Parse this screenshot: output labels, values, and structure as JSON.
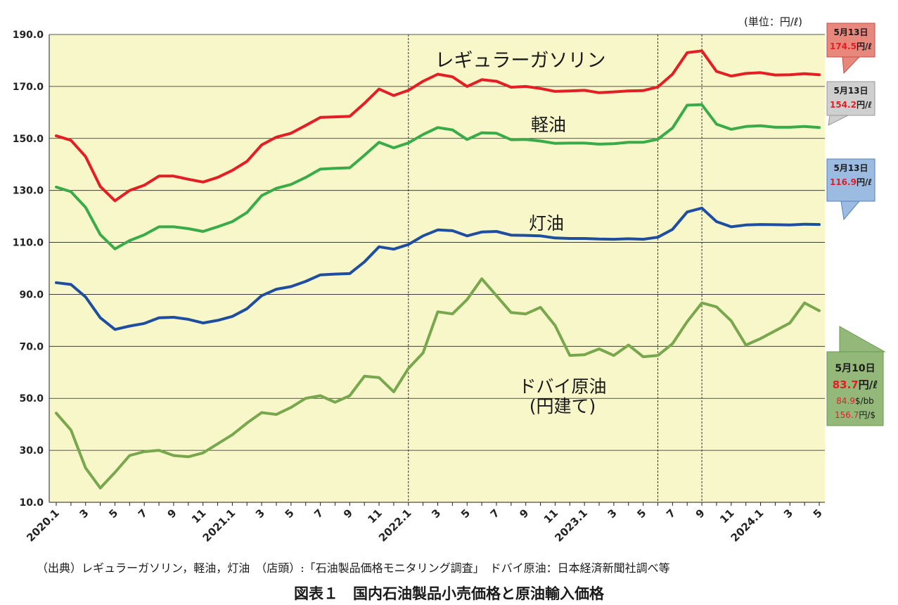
{
  "chart_data": {
    "type": "line",
    "unit_label": "(単位：円/ℓ)",
    "y_ticks": [
      "190.0",
      "170.0",
      "150.0",
      "130.0",
      "110.0",
      "90.0",
      "70.0",
      "50.0",
      "30.0",
      "10.0"
    ],
    "ylim": [
      10,
      190
    ],
    "x_tick_labels": [
      "2020.1",
      "3",
      "5",
      "7",
      "9",
      "11",
      "2021.1",
      "3",
      "5",
      "7",
      "9",
      "11",
      "2022.1",
      "3",
      "5",
      "7",
      "9",
      "11",
      "2023.1",
      "3",
      "5",
      "7",
      "9",
      "11",
      "2024.1",
      "3",
      "5"
    ],
    "x": [
      "2020.1",
      "2020.2",
      "2020.3",
      "2020.4",
      "2020.5",
      "2020.6",
      "2020.7",
      "2020.8",
      "2020.9",
      "2020.10",
      "2020.11",
      "2020.12",
      "2021.1",
      "2021.2",
      "2021.3",
      "2021.4",
      "2021.5",
      "2021.6",
      "2021.7",
      "2021.8",
      "2021.9",
      "2021.10",
      "2021.11",
      "2021.12",
      "2022.1",
      "2022.2",
      "2022.3",
      "2022.4",
      "2022.5",
      "2022.6",
      "2022.7",
      "2022.8",
      "2022.9",
      "2022.10",
      "2022.11",
      "2022.12",
      "2023.1",
      "2023.2",
      "2023.3",
      "2023.4",
      "2023.5",
      "2023.6",
      "2023.7",
      "2023.8",
      "2023.9",
      "2023.10",
      "2023.11",
      "2023.12",
      "2024.1",
      "2024.2",
      "2024.3",
      "2024.4",
      "2024.5"
    ],
    "series": [
      {
        "name": "レギュラーガソリン",
        "color": "#e31e24",
        "values": [
          151,
          149.3,
          143,
          131.5,
          126,
          130,
          132,
          135.5,
          135.5,
          134.3,
          133.2,
          135,
          137.7,
          141.2,
          147.5,
          150.5,
          152,
          155,
          158.1,
          158.3,
          158.5,
          163.5,
          169,
          166.5,
          168.5,
          172,
          174.7,
          173.7,
          170,
          172.6,
          172,
          169.7,
          170,
          169.2,
          168.1,
          168.3,
          168.5,
          167.6,
          167.9,
          168.3,
          168.4,
          169.8,
          174.7,
          183,
          183.7,
          175.8,
          174,
          175,
          175.3,
          174.4,
          174.5,
          174.9,
          174.5
        ],
        "label": "レギュラーガソリン"
      },
      {
        "name": "軽油",
        "color": "#3aab49",
        "values": [
          131.3,
          129.5,
          123.5,
          113,
          107.5,
          110.7,
          112.9,
          116,
          116,
          115.3,
          114.2,
          116,
          118,
          121.5,
          128,
          130.8,
          132.3,
          135,
          138.2,
          138.5,
          138.7,
          143.5,
          148.5,
          146.4,
          148.3,
          151.5,
          154.2,
          153.3,
          149.6,
          152.2,
          152,
          149.5,
          149.6,
          149,
          148.1,
          148.2,
          148.2,
          147.8,
          148,
          148.5,
          148.5,
          149.7,
          154,
          162.8,
          163,
          155.5,
          153.5,
          154.6,
          154.9,
          154.3,
          154.3,
          154.6,
          154.2
        ],
        "label": "軽油"
      },
      {
        "name": "灯油",
        "color": "#1f4ea1",
        "values": [
          94.5,
          93.8,
          89,
          81,
          76.5,
          77.8,
          78.8,
          81,
          81.2,
          80.4,
          79,
          80,
          81.5,
          84.5,
          89.5,
          92,
          93,
          95,
          97.5,
          97.8,
          98,
          102.5,
          108.3,
          107.4,
          109.2,
          112.5,
          114.8,
          114.5,
          112.5,
          114,
          114.2,
          112.8,
          112.7,
          112.5,
          111.7,
          111.5,
          111.5,
          111.3,
          111.2,
          111.4,
          111.2,
          112,
          115,
          121.7,
          123.2,
          118,
          116,
          116.7,
          116.9,
          116.8,
          116.7,
          117,
          116.9
        ],
        "label": "灯油"
      },
      {
        "name": "ドバイ原油(円建て)",
        "color": "#78a74d",
        "values": [
          44.3,
          37.8,
          23.2,
          15.5,
          21.5,
          28,
          29.5,
          30,
          28,
          27.5,
          29,
          32.5,
          36,
          40.5,
          44.5,
          43.8,
          46.5,
          50,
          51,
          48.5,
          51,
          58.5,
          58,
          52.5,
          61.5,
          67.5,
          83.3,
          82.5,
          88,
          96,
          89.5,
          83,
          82.5,
          85,
          78,
          66.5,
          66.8,
          69,
          66.5,
          70.5,
          66,
          66.5,
          71,
          79.5,
          86.7,
          85.2,
          79.8,
          70.5,
          73,
          76,
          79,
          86.7,
          83.7
        ],
        "label": "ドバイ原油"
      }
    ],
    "series_labels": [
      {
        "lines": [
          "レギュラーガソリン"
        ]
      },
      {
        "lines": [
          "軽油"
        ]
      },
      {
        "lines": [
          "灯油"
        ]
      },
      {
        "lines": [
          "ドバイ原油",
          "(円建て)"
        ]
      }
    ],
    "callouts": [
      {
        "date": "5月13日",
        "value": "174.5",
        "unit": "円/ℓ",
        "fill": "#e8877c",
        "stroke": "#c0504d",
        "series": 0
      },
      {
        "date": "5月13日",
        "value": "154.2",
        "unit": "円/ℓ",
        "fill": "#cfcfcf",
        "stroke": "#9a9a9a",
        "series": 1
      },
      {
        "date": "5月13日",
        "value": "116.9",
        "unit": "円/ℓ",
        "fill": "#9cbbe0",
        "stroke": "#4f81bd",
        "series": 2
      },
      {
        "date": "5月10日",
        "value": "83.7",
        "unit": "円/ℓ",
        "extra1_value": "84.9",
        "extra1_unit": "$/bb",
        "extra2_value": "156.7",
        "extra2_unit": "円/$",
        "fill": "#93b87a",
        "stroke": "#6a9a4a",
        "series": 3
      }
    ],
    "grid": true,
    "plot_background": "#f7f7c9",
    "legend": "inline labels"
  },
  "source_text": "（出典）レギュラーガソリン，軽油，灯油　（店頭）:「石油製品価格モニタリング調査」　ドバイ原油：日本経済新聞社調べ等",
  "caption": "図表１　国内石油製品小売価格と原油輸入価格"
}
